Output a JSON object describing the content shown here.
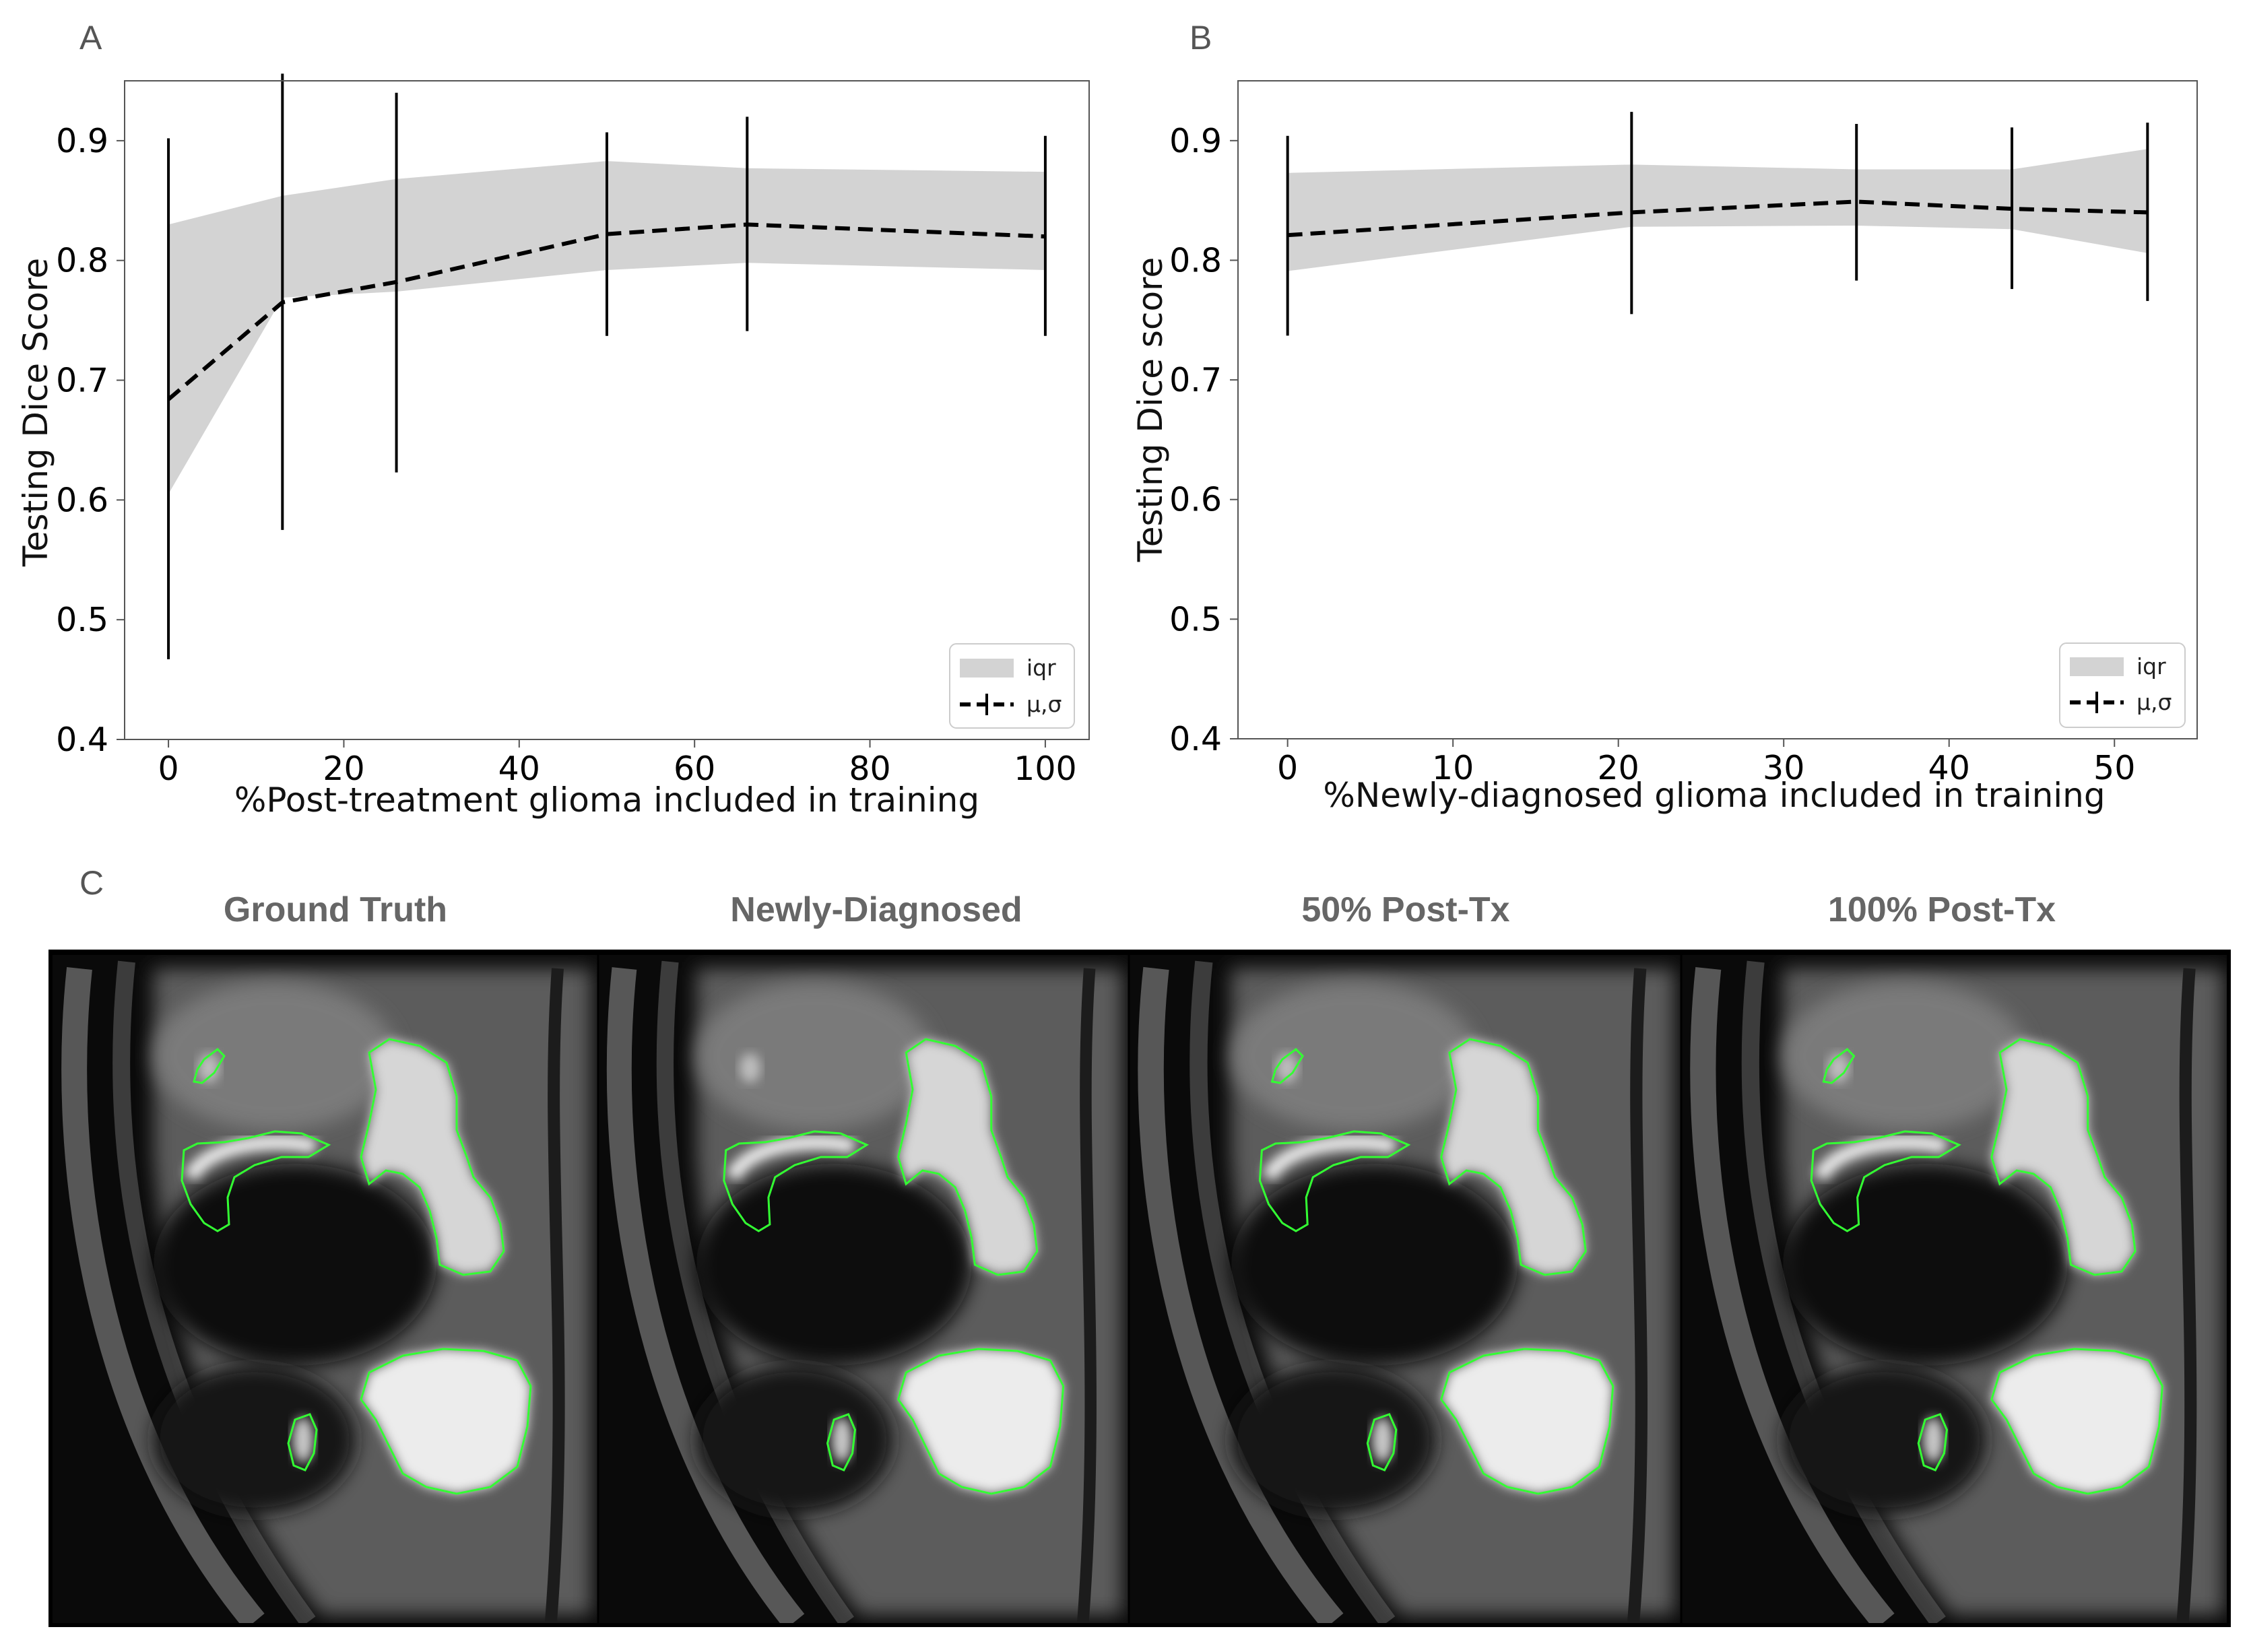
{
  "panels": {
    "a_letter": "A",
    "b_letter": "B",
    "c_letter": "C"
  },
  "legend": {
    "iqr_label": "iqr",
    "mean_label": "μ,σ"
  },
  "colors": {
    "iqr_fill": "#d3d3d3",
    "line": "#000000",
    "contour": "#33ff33"
  },
  "mri_titles": [
    "Ground Truth",
    "Newly-Diagnosed",
    "50% Post-Tx",
    "100% Post-Tx"
  ],
  "chart_data": [
    {
      "type": "line",
      "panel": "A",
      "xlabel": "%Post-treatment glioma included in training",
      "ylabel": "Testing Dice Score",
      "xlim": [
        -5,
        105
      ],
      "ylim": [
        0.4,
        0.95
      ],
      "xticks": [
        0,
        20,
        40,
        60,
        80,
        100
      ],
      "xtick_labels": [
        "0",
        "20",
        "40",
        "60",
        "80",
        "100"
      ],
      "yticks": [
        0.4,
        0.5,
        0.6,
        0.7,
        0.8,
        0.9
      ],
      "ytick_labels": [
        "0.4",
        "0.5",
        "0.6",
        "0.7",
        "0.8",
        "0.9"
      ],
      "x": [
        0,
        13,
        26,
        50,
        66,
        100
      ],
      "mean": [
        0.684,
        0.765,
        0.782,
        0.822,
        0.83,
        0.82
      ],
      "err_low": [
        0.467,
        0.575,
        0.623,
        0.737,
        0.741,
        0.737
      ],
      "err_high": [
        0.902,
        0.956,
        0.94,
        0.907,
        0.92,
        0.904
      ],
      "iqr_low": [
        0.605,
        0.769,
        0.774,
        0.792,
        0.798,
        0.792
      ],
      "iqr_high": [
        0.83,
        0.854,
        0.868,
        0.883,
        0.877,
        0.874
      ],
      "legend_position": "lower-right"
    },
    {
      "type": "line",
      "panel": "B",
      "xlabel": "%Newly-diagnosed glioma included in training",
      "ylabel": "Testing Dice score",
      "xlim": [
        -3,
        55
      ],
      "ylim": [
        0.4,
        0.95
      ],
      "xticks": [
        0,
        10,
        20,
        30,
        40,
        50
      ],
      "xtick_labels": [
        "0",
        "10",
        "20",
        "30",
        "40",
        "50"
      ],
      "yticks": [
        0.4,
        0.5,
        0.6,
        0.7,
        0.8,
        0.9
      ],
      "ytick_labels": [
        "0.4",
        "0.5",
        "0.6",
        "0.7",
        "0.8",
        "0.9"
      ],
      "x": [
        0,
        20.8,
        34.4,
        43.8,
        52
      ],
      "mean": [
        0.821,
        0.84,
        0.849,
        0.843,
        0.84
      ],
      "err_low": [
        0.737,
        0.755,
        0.783,
        0.776,
        0.766
      ],
      "err_high": [
        0.904,
        0.924,
        0.914,
        0.911,
        0.915
      ],
      "iqr_low": [
        0.791,
        0.828,
        0.829,
        0.826,
        0.806
      ],
      "iqr_high": [
        0.873,
        0.88,
        0.876,
        0.876,
        0.893
      ],
      "legend_position": "lower-right"
    }
  ]
}
